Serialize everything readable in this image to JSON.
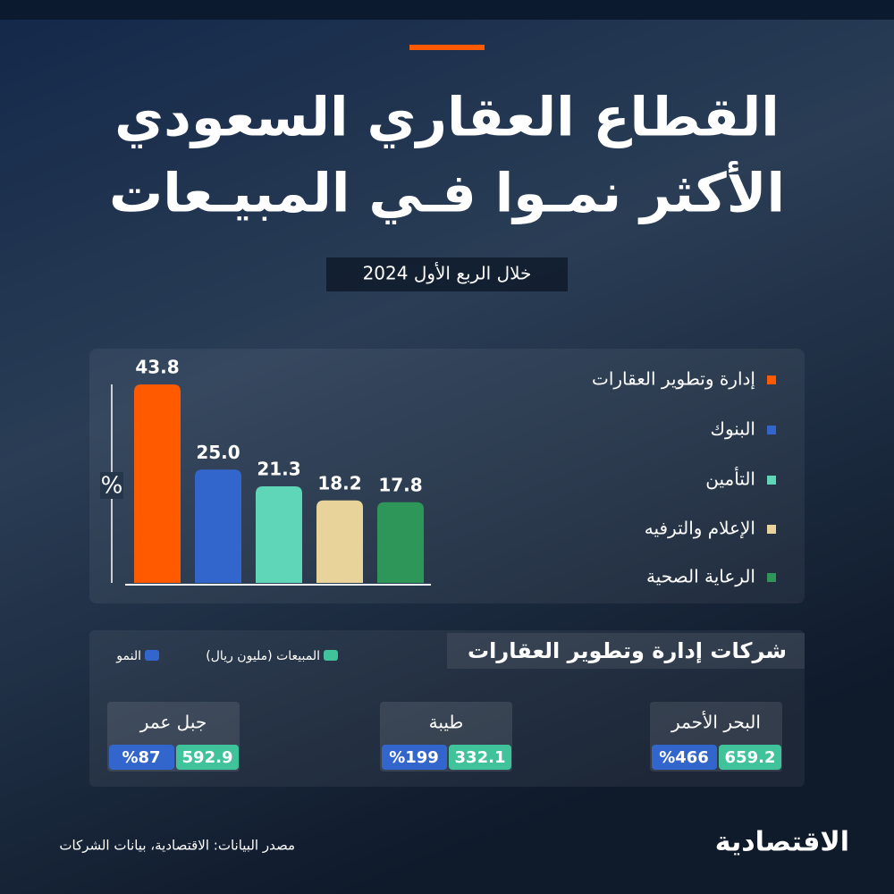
{
  "header": {
    "title_lines": [
      "القطاع العقاري السعودي",
      "الأكثر نمـوا فـي المبيـعات"
    ],
    "subtitle": "خلال الربع الأول 2024"
  },
  "chart_data": {
    "type": "bar",
    "ylabel": "%",
    "categories": [
      "إدارة وتطوير العقارات",
      "البنوك",
      "التأمين",
      "الإعلام والترفيه",
      "الرعاية الصحية"
    ],
    "values": [
      43.8,
      25.0,
      21.3,
      18.2,
      17.8
    ],
    "value_labels": [
      "43.8",
      "25.0",
      "21.3",
      "18.2",
      "17.8"
    ],
    "colors": [
      "#ff5a00",
      "#3366cc",
      "#5fd6b8",
      "#e8d49a",
      "#2e9658"
    ],
    "ylim": [
      0,
      44
    ]
  },
  "companies": {
    "title": "شركات إدارة وتطوير العقارات",
    "legend": [
      {
        "label": "المبيعات (مليون ريال)",
        "color": "#40c39a"
      },
      {
        "label": "النمو",
        "color": "#3366cc"
      }
    ],
    "items": [
      {
        "name": "البحر الأحمر",
        "sales": "659.2",
        "growth": "%466"
      },
      {
        "name": "طيبة",
        "sales": "332.1",
        "growth": "%199"
      },
      {
        "name": "جبل عمر",
        "sales": "592.9",
        "growth": "%87"
      }
    ]
  },
  "footer": {
    "source": "مصدر البيانات: الاقتصادية، بيانات الشركات",
    "logo": "الاقتصادية"
  }
}
